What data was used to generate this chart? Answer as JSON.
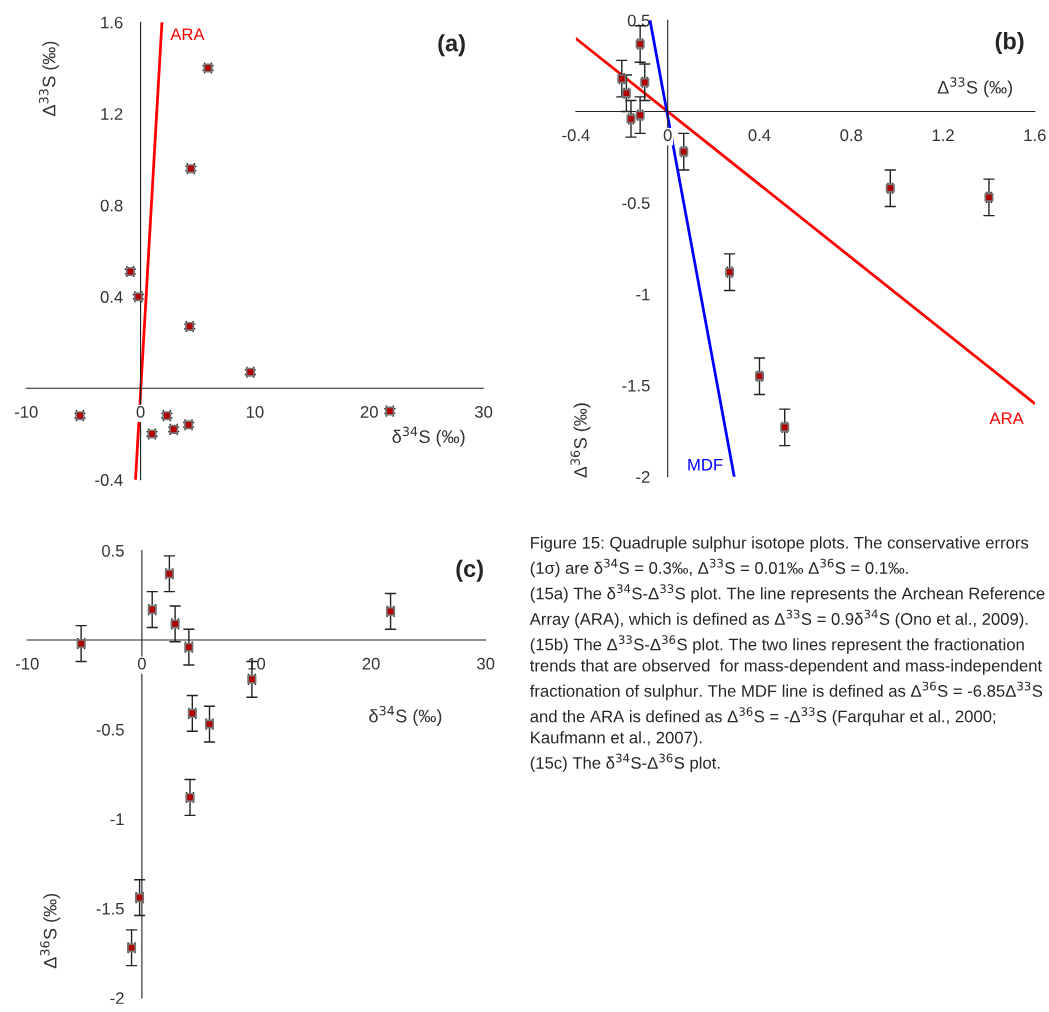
{
  "chart_data": [
    {
      "type": "scatter",
      "title": "(a)",
      "xlabel": "δ$^{34}$S (‰)",
      "ylabel": "Δ$^{33}$S (‰)",
      "xlim": [
        -10,
        30
      ],
      "ylim": [
        -0.4,
        1.6
      ],
      "xticks": [
        -10,
        0,
        10,
        20,
        30
      ],
      "yticks": [
        -0.4,
        0.4,
        0.8,
        1.2,
        1.6
      ],
      "grid": false,
      "legend": false,
      "series": [
        {
          "type": "scatter",
          "marker": "square",
          "color": "#b00000",
          "x": [
            -5.3,
            -0.9,
            -0.2,
            1.0,
            2.3,
            2.9,
            4.2,
            4.3,
            4.4,
            5.9,
            9.6,
            21.8
          ],
          "values": [
            -0.12,
            0.51,
            0.4,
            -0.2,
            -0.12,
            -0.18,
            -0.16,
            0.27,
            0.96,
            1.4,
            0.07,
            -0.1
          ],
          "errors": [
            0.01,
            0.01,
            0.01,
            0.01,
            0.01,
            0.01,
            0.01,
            0.01,
            0.01,
            0.01,
            0.01,
            0.01
          ],
          "xerrors": [
            0.3,
            0.3,
            0.3,
            0.3,
            0.3,
            0.3,
            0.3,
            0.3,
            0.3,
            0.3,
            0.3,
            0.3
          ]
        },
        {
          "type": "line",
          "name": "ARA",
          "color": "#ff0000",
          "x": [
            -0.44,
            1.87
          ],
          "values": [
            -0.4,
            1.6
          ]
        }
      ]
    },
    {
      "type": "scatter",
      "title": "(b)",
      "xlabel": "Δ$^{33}$S (‰)",
      "ylabel": "Δ$^{36}$S (‰)",
      "xlim": [
        -0.4,
        1.6
      ],
      "ylim": [
        -2,
        0.5
      ],
      "xticks": [
        -0.4,
        0,
        0.4,
        0.8,
        1.2,
        1.6
      ],
      "yticks": [
        -2,
        -1.5,
        -1,
        -0.5,
        0.5
      ],
      "grid": false,
      "legend": false,
      "series": [
        {
          "type": "scatter",
          "marker": "square",
          "color": "#b00000",
          "x": [
            -0.12,
            -0.2,
            -0.18,
            -0.1,
            -0.16,
            -0.12,
            0.07,
            0.27,
            0.4,
            0.51,
            0.97,
            1.4
          ],
          "values": [
            0.37,
            0.18,
            0.1,
            0.16,
            -0.04,
            -0.02,
            -0.22,
            -0.88,
            -1.45,
            -1.73,
            -0.42,
            -0.47
          ],
          "errors": [
            0.1,
            0.1,
            0.1,
            0.1,
            0.1,
            0.1,
            0.1,
            0.1,
            0.1,
            0.1,
            0.1,
            0.1
          ],
          "xerrors": [
            0.01,
            0.01,
            0.01,
            0.01,
            0.01,
            0.01,
            0.01,
            0.01,
            0.01,
            0.01,
            0.01,
            0.01
          ]
        },
        {
          "type": "line",
          "name": "ARA",
          "color": "#ff0000",
          "x": [
            -0.4,
            1.6
          ],
          "values": [
            0.4,
            -1.6
          ]
        },
        {
          "type": "line",
          "name": "MDF",
          "color": "#0000ff",
          "x": [
            -0.077,
            0.29
          ],
          "values": [
            0.5,
            -2.0
          ]
        }
      ]
    },
    {
      "type": "scatter",
      "title": "(c)",
      "xlabel": "δ$^{34}$S (‰)",
      "ylabel": "Δ$^{36}$S (‰)",
      "xlim": [
        -10,
        30
      ],
      "ylim": [
        -2,
        0.5
      ],
      "xticks": [
        -10,
        0,
        10,
        20,
        30
      ],
      "yticks": [
        -2,
        -1.5,
        -1,
        -0.5,
        0.5
      ],
      "grid": false,
      "legend": false,
      "series": [
        {
          "type": "scatter",
          "marker": "square",
          "color": "#b00000",
          "x": [
            -5.3,
            0.9,
            2.4,
            2.9,
            4.1,
            4.4,
            5.9,
            4.2,
            9.6,
            21.7,
            -0.2,
            -0.9
          ],
          "values": [
            -0.02,
            0.17,
            0.37,
            0.09,
            -0.04,
            -0.41,
            -0.47,
            -0.88,
            -0.22,
            0.16,
            -1.44,
            -1.72
          ],
          "errors": [
            0.1,
            0.1,
            0.1,
            0.1,
            0.1,
            0.1,
            0.1,
            0.1,
            0.1,
            0.1,
            0.1,
            0.1
          ],
          "xerrors": [
            0.3,
            0.3,
            0.3,
            0.3,
            0.3,
            0.3,
            0.3,
            0.3,
            0.3,
            0.3,
            0.3,
            0.3
          ]
        }
      ]
    },
    {
      "type": "other",
      "annotations": [
        "Figure 15: Quadruple sulphur isotope plots. The conservative errors (1σ) are δ$^{34}$S = 0.3‰, Δ$^{33}$S = 0.01‰ Δ$^{36}$S = 0.1‰.",
        "(15a) The δ$^{34}$S-Δ$^{33}$S plot. The line represents the Archean Reference Array (ARA), which is defined as Δ$^{33}$S = 0.9δ$^{34}$S (Ono et al., 2009).",
        "(15b) The Δ$^{33}$S-Δ$^{36}$S plot. The two lines represent the fractionation trends that are observed  for mass-dependent and mass-independent fractionation of sulphur. The MDF line is defined as Δ$^{36}$S = -6.85Δ$^{33}$S and the ARA is defined as Δ$^{36}$S = -Δ$^{33}$S (Farquhar et al., 2000; Kaufmann et al., 2007).",
        "(15c) The δ$^{34}$S-Δ$^{36}$S plot."
      ]
    }
  ]
}
